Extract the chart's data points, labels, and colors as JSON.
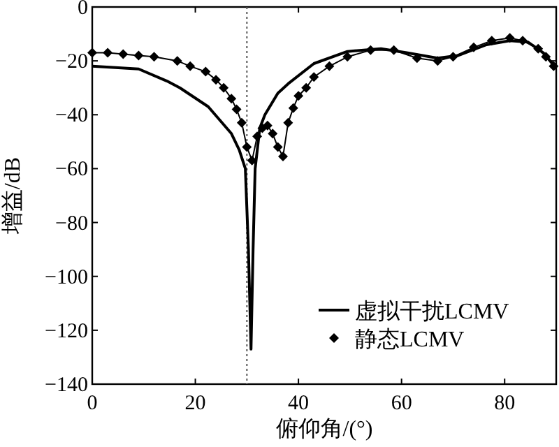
{
  "chart_data": {
    "type": "line",
    "xlabel": "俯仰角/(°)",
    "ylabel": "增益/dB",
    "xlim": [
      0,
      90
    ],
    "ylim": [
      -140,
      0
    ],
    "xticks": [
      0,
      20,
      40,
      60,
      80
    ],
    "yticks": [
      -140,
      -120,
      -100,
      -80,
      -60,
      -40,
      -20,
      0
    ],
    "legend": "bottom right",
    "grid": false,
    "ref_lines": [
      {
        "axis": "x",
        "value": 30,
        "color": "#555555",
        "line_style": "dotted"
      }
    ],
    "series": [
      {
        "name": "虚拟干扰LCMV",
        "color": "#000000",
        "marker": "none",
        "line_style": "solid",
        "x": [
          0,
          9,
          14.5,
          17,
          22.5,
          27,
          28.5,
          29.7,
          30.3,
          30.8,
          31.2,
          31.6,
          32.5,
          33.5,
          36,
          38,
          43,
          49.5,
          56,
          61,
          67,
          71,
          76.5,
          81,
          84.5,
          87.5,
          89.5
        ],
        "values": [
          -22,
          -23,
          -27.5,
          -30,
          -37,
          -47,
          -53,
          -60,
          -90,
          -127,
          -90,
          -60,
          -45,
          -40,
          -32,
          -28.5,
          -21,
          -16.5,
          -15.5,
          -17,
          -19,
          -18,
          -14,
          -12.5,
          -13,
          -17,
          -21.5
        ]
      },
      {
        "name": "静态LCMV",
        "color": "#000000",
        "marker": "diamond",
        "line_style": "solid",
        "x": [
          0,
          3,
          6,
          9,
          12,
          16.5,
          19,
          22,
          24,
          25.5,
          27,
          28,
          29,
          30,
          31,
          32,
          33,
          34,
          35,
          36,
          37,
          38,
          39,
          40,
          41.5,
          43,
          46,
          49.5,
          54,
          58.5,
          63,
          67,
          70,
          74,
          77.5,
          81,
          83.5,
          86.5,
          88,
          89.5
        ],
        "values": [
          -17,
          -17,
          -17.5,
          -18,
          -18.5,
          -20,
          -22,
          -24,
          -27,
          -30,
          -34,
          -38,
          -43,
          -52,
          -57,
          -48,
          -45,
          -44,
          -47,
          -52,
          -55.5,
          -43,
          -37.5,
          -33,
          -30,
          -26,
          -22,
          -18.5,
          -16,
          -16,
          -19,
          -20,
          -18.5,
          -15,
          -12.5,
          -11.5,
          -12.5,
          -15.5,
          -18.5,
          -22
        ]
      }
    ]
  }
}
